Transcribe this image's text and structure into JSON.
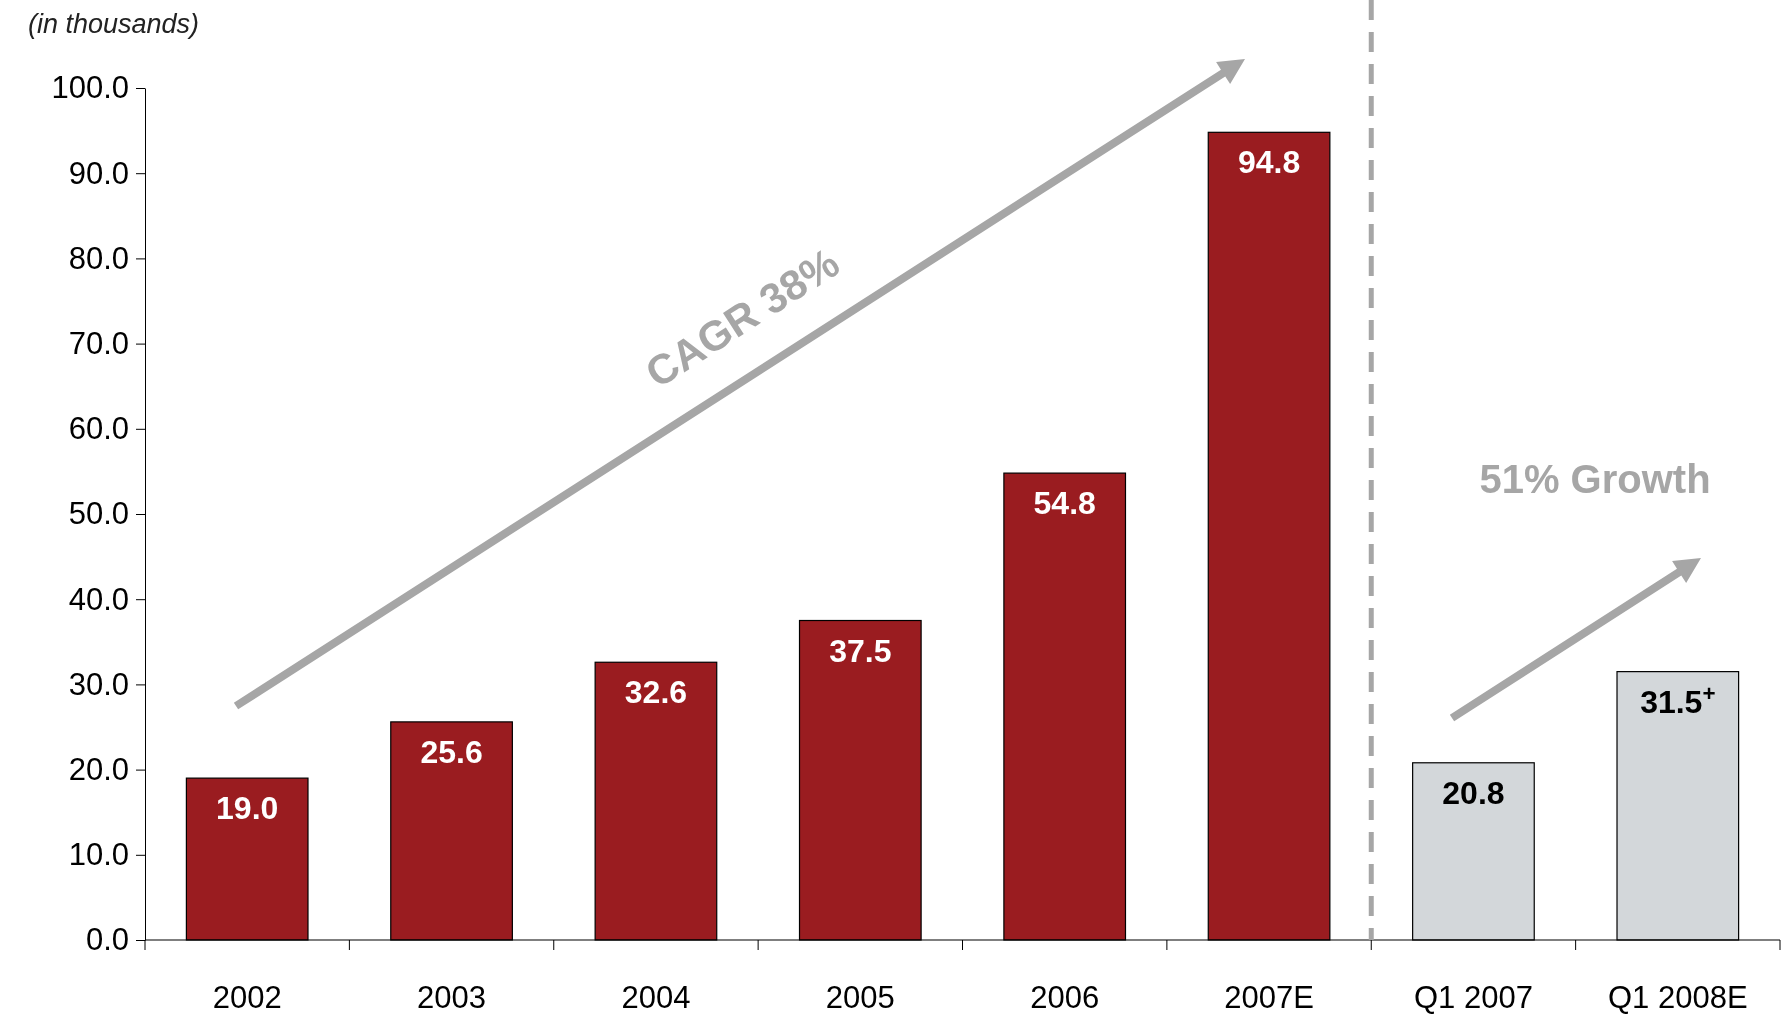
{
  "chart_data": {
    "type": "bar",
    "ylabel": "(in thousands)",
    "categories": [
      "2002",
      "2003",
      "2004",
      "2005",
      "2006",
      "2007E",
      "Q1 2007",
      "Q1 2008E"
    ],
    "values": [
      19.0,
      25.6,
      32.6,
      37.5,
      54.8,
      94.8,
      20.8,
      31.5
    ],
    "colors": [
      "#9a1c20",
      "#9a1c20",
      "#9a1c20",
      "#9a1c20",
      "#9a1c20",
      "#9a1c20",
      "#d3d7da",
      "#d3d7da"
    ],
    "value_labels": [
      "19.0",
      "25.6",
      "32.6",
      "37.5",
      "54.8",
      "94.8",
      "20.8",
      "31.5$^{+}$"
    ],
    "ylim": [
      0,
      100
    ],
    "yticks": [
      {
        "value": 0,
        "label": "0.0"
      },
      {
        "value": 10,
        "label": "10.0"
      },
      {
        "value": 20,
        "label": "20.0"
      },
      {
        "value": 30,
        "label": "30.0"
      },
      {
        "value": 40,
        "label": "40.0"
      },
      {
        "value": 50,
        "label": "50.0"
      },
      {
        "value": 60,
        "label": "60.0"
      },
      {
        "value": 70,
        "label": "70.0"
      },
      {
        "value": 80,
        "label": "80.0"
      },
      {
        "value": 90,
        "label": "90.0"
      },
      {
        "value": 100,
        "label": "100.0"
      }
    ],
    "annotations": [
      "CAGR 38%",
      "51% Growth"
    ],
    "grid": false
  }
}
